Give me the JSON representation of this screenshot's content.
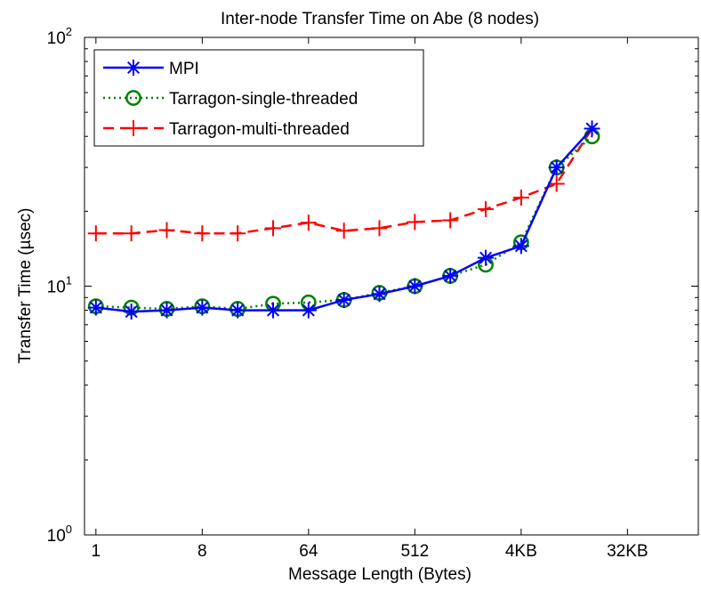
{
  "chart_data": {
    "type": "line",
    "title": "Inter-node Transfer Time on Abe (8 nodes)",
    "xlabel": "Message Length (Bytes)",
    "ylabel": "Transfer Time (µsec)",
    "x_scale": "log2",
    "y_scale": "log10",
    "x": [
      1,
      2,
      4,
      8,
      16,
      32,
      64,
      128,
      256,
      512,
      1024,
      2048,
      4096,
      8192,
      16384
    ],
    "xlim": [
      0.8,
      131072
    ],
    "ylim": [
      1,
      100
    ],
    "x_ticks": [
      {
        "value": 1,
        "label": "1"
      },
      {
        "value": 8,
        "label": "8"
      },
      {
        "value": 64,
        "label": "64"
      },
      {
        "value": 512,
        "label": "512"
      },
      {
        "value": 4096,
        "label": "4KB"
      },
      {
        "value": 32768,
        "label": "32KB"
      }
    ],
    "y_ticks": [
      {
        "value": 1,
        "base": "10",
        "exp": "0"
      },
      {
        "value": 10,
        "base": "10",
        "exp": "1"
      },
      {
        "value": 100,
        "base": "10",
        "exp": "2"
      }
    ],
    "grid": false,
    "legend_position": "top-left",
    "series": [
      {
        "name": "MPI",
        "color": "#0000ff",
        "marker": "asterisk",
        "dash": "solid",
        "values": [
          8.2,
          7.9,
          8.0,
          8.2,
          8.0,
          8.0,
          8.0,
          8.8,
          9.3,
          10.0,
          11.0,
          13.0,
          14.5,
          30.0,
          43.0
        ]
      },
      {
        "name": "Tarragon-single-threaded",
        "color": "#008000",
        "marker": "circle",
        "dash": "dotted",
        "values": [
          8.3,
          8.2,
          8.1,
          8.3,
          8.1,
          8.5,
          8.6,
          8.8,
          9.4,
          10.0,
          11.0,
          12.2,
          15.0,
          30.0,
          40.0
        ]
      },
      {
        "name": "Tarragon-multi-threaded",
        "color": "#ff0000",
        "marker": "plus",
        "dash": "dashed",
        "values": [
          16.3,
          16.3,
          16.8,
          16.3,
          16.3,
          17.1,
          18.0,
          16.7,
          17.1,
          18.1,
          18.4,
          20.4,
          22.7,
          25.8,
          43.0
        ]
      }
    ]
  }
}
